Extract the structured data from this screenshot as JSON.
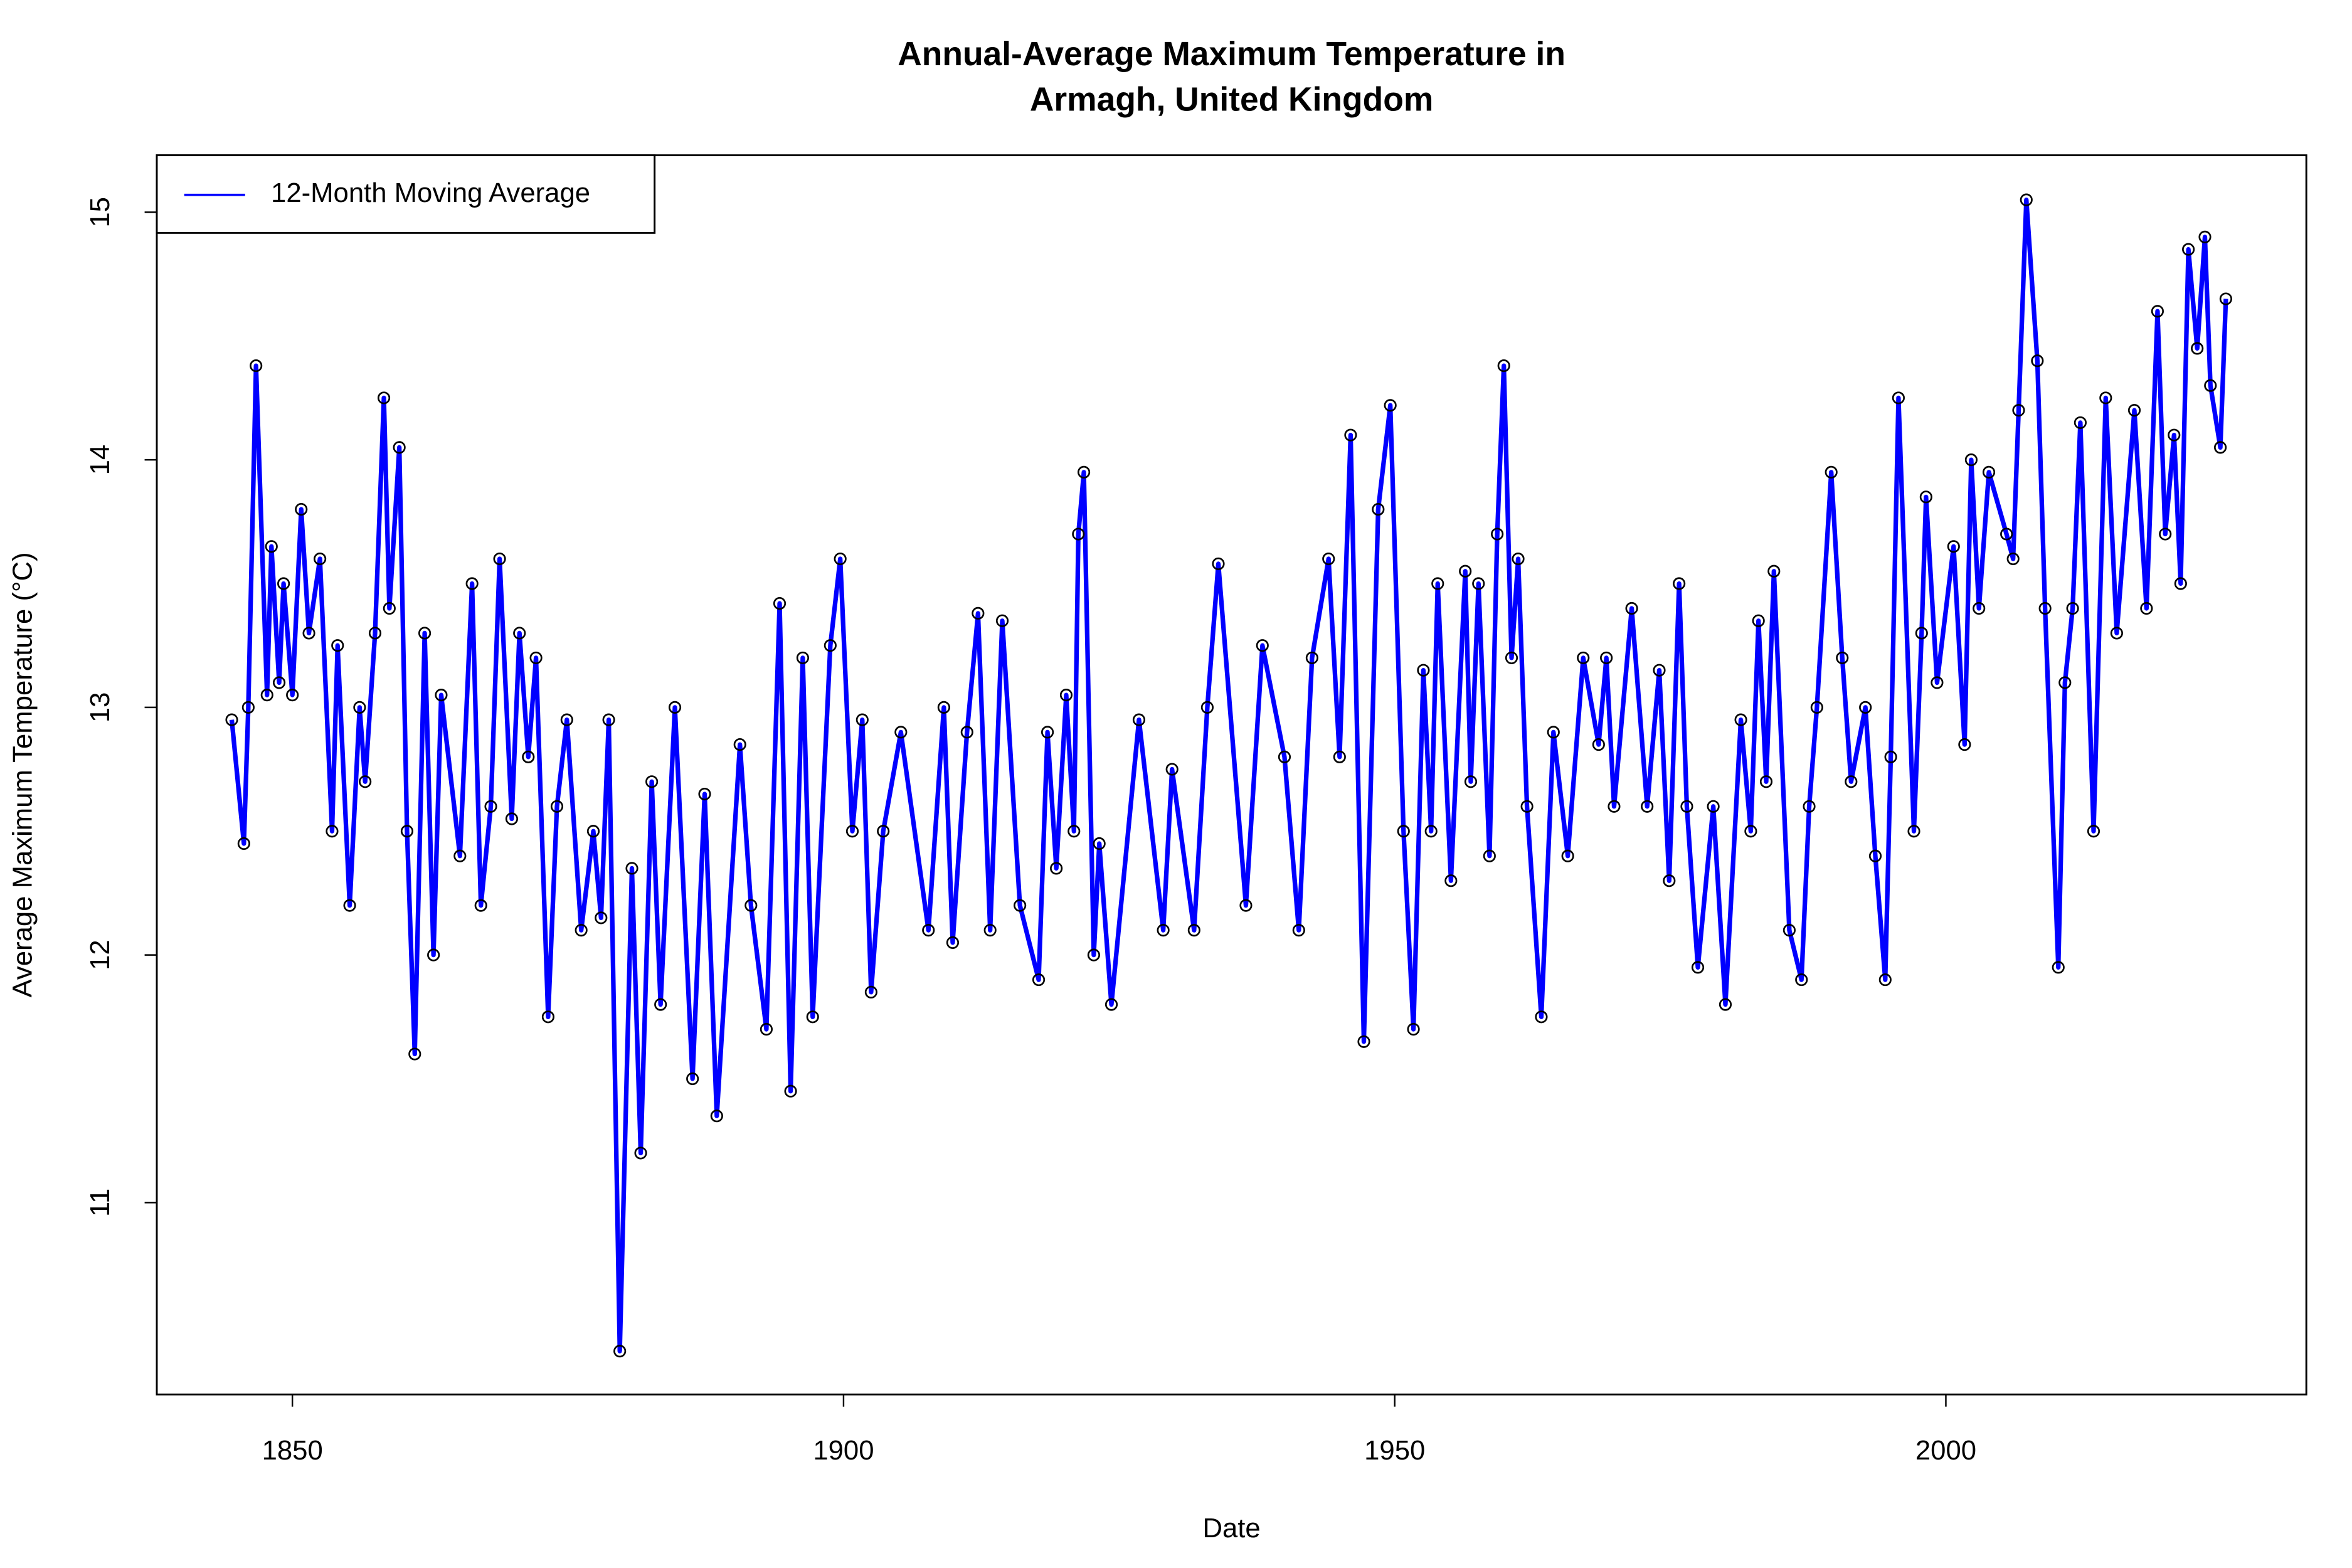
{
  "chart_data": {
    "type": "line",
    "title": [
      "Annual-Average Maximum Temperature in",
      "Armagh, United Kingdom"
    ],
    "x_label": "Date",
    "y_label": "Average Maximum Temperature (°C)",
    "xlim": [
      1837.7,
      2032.7
    ],
    "ylim": [
      10.225,
      15.23
    ],
    "xticks": [
      1850,
      1900,
      1950,
      2000
    ],
    "yticks": [
      11,
      12,
      13,
      14,
      15
    ],
    "grid": false,
    "legend": "top-left",
    "markers": true,
    "series": [
      {
        "name": "12-Month Moving Average",
        "color": "#0000ff",
        "x": [
          1844.5,
          1845.6,
          1846,
          1846.7,
          1847.7,
          1848.1,
          1848.8,
          1849.2,
          1850,
          1850.8,
          1851.5,
          1852.5,
          1853.6,
          1854.1,
          1855.2,
          1856.1,
          1856.6,
          1857.5,
          1858.3,
          1858.8,
          1859.7,
          1860.4,
          1861.1,
          1862,
          1862.8,
          1863.5,
          1865.2,
          1866.3,
          1867.1,
          1868,
          1868.8,
          1869.9,
          1870.6,
          1871.4,
          1872.1,
          1873.2,
          1874,
          1874.9,
          1876.2,
          1877.3,
          1878,
          1878.7,
          1879.7,
          1880.8,
          1881.6,
          1882.6,
          1883.4,
          1884.7,
          1886.3,
          1887.4,
          1888.5,
          1890.6,
          1891.6,
          1893,
          1894.2,
          1895.2,
          1896.3,
          1897.2,
          1898.8,
          1899.7,
          1900.8,
          1901.7,
          1902.5,
          1903.6,
          1905.2,
          1907.7,
          1909.1,
          1909.9,
          1911.2,
          1912.2,
          1913.3,
          1914.4,
          1916,
          1917.7,
          1918.5,
          1919.3,
          1920.2,
          1920.9,
          1921.3,
          1921.8,
          1922.7,
          1923.2,
          1924.3,
          1926.8,
          1929,
          1929.8,
          1931.8,
          1933,
          1934,
          1936.5,
          1938,
          1940,
          1941.3,
          1942.5,
          1944,
          1945,
          1946,
          1947.2,
          1948.5,
          1949.6,
          1950.8,
          1951.7,
          1952.6,
          1953.3,
          1953.9,
          1955.1,
          1956.4,
          1956.9,
          1957.6,
          1958.6,
          1959.3,
          1959.9,
          1960.6,
          1961.2,
          1962,
          1963.3,
          1964.4,
          1965.7,
          1967.1,
          1968.5,
          1969.2,
          1969.9,
          1971.5,
          1972.9,
          1974,
          1974.9,
          1975.8,
          1976.5,
          1977.5,
          1978.9,
          1980,
          1981.4,
          1982.3,
          1983,
          1983.7,
          1984.4,
          1985.8,
          1986.9,
          1987.6,
          1988.3,
          1989.6,
          1990.6,
          1991.4,
          1992.7,
          1993.6,
          1994.5,
          1995,
          1995.7,
          1997.1,
          1997.8,
          1998.2,
          1999.2,
          2000.7,
          2001.7,
          2002.3,
          2003,
          2003.9,
          2005.5,
          2006.1,
          2006.6,
          2007.3,
          2008.3,
          2009,
          2010.2,
          2010.8,
          2011.5,
          2012.2,
          2013.4,
          2014.5,
          2015.5,
          2017.1,
          2018.2,
          2019.2,
          2019.9,
          2020.7,
          2021.3,
          2022,
          2022.8,
          2023.5,
          2024,
          2024.9,
          2025.4
        ],
        "values": [
          12.95,
          12.45,
          13.0,
          14.38,
          13.05,
          13.65,
          13.1,
          13.5,
          13.05,
          13.8,
          13.3,
          13.6,
          12.5,
          13.25,
          12.2,
          13.0,
          12.7,
          13.3,
          14.25,
          13.4,
          14.05,
          12.5,
          11.6,
          13.3,
          12.0,
          13.05,
          12.4,
          13.5,
          12.2,
          12.6,
          13.6,
          12.55,
          13.3,
          12.8,
          13.2,
          11.75,
          12.6,
          12.95,
          12.1,
          12.5,
          12.15,
          12.95,
          10.4,
          12.35,
          11.2,
          12.7,
          11.8,
          13.0,
          11.5,
          12.65,
          11.35,
          12.85,
          12.2,
          11.7,
          13.42,
          11.45,
          13.2,
          11.75,
          13.25,
          13.6,
          12.5,
          12.95,
          11.85,
          12.5,
          12.9,
          12.1,
          13.0,
          12.05,
          12.9,
          13.38,
          12.1,
          13.35,
          12.2,
          11.9,
          12.9,
          12.35,
          13.05,
          12.5,
          13.7,
          13.95,
          12.0,
          12.45,
          11.8,
          12.95,
          12.1,
          12.75,
          12.1,
          13.0,
          13.58,
          12.2,
          13.25,
          12.8,
          12.1,
          13.2,
          13.6,
          12.8,
          14.1,
          11.65,
          13.8,
          14.22,
          12.5,
          11.7,
          13.15,
          12.5,
          13.5,
          12.3,
          13.55,
          12.7,
          13.5,
          12.4,
          13.7,
          14.38,
          13.2,
          13.6,
          12.6,
          11.75,
          12.9,
          12.4,
          13.2,
          12.85,
          13.2,
          12.6,
          13.4,
          12.6,
          13.15,
          12.3,
          13.5,
          12.6,
          11.95,
          12.6,
          11.8,
          12.95,
          12.5,
          13.35,
          12.7,
          13.55,
          12.1,
          11.9,
          12.6,
          13.0,
          13.95,
          13.2,
          12.7,
          13.0,
          12.4,
          11.9,
          12.8,
          14.25,
          12.5,
          13.3,
          13.85,
          13.1,
          13.65,
          12.85,
          14.0,
          13.4,
          13.95,
          13.7,
          13.6,
          14.2,
          15.05,
          14.4,
          13.4,
          11.95,
          13.1,
          13.4,
          14.15,
          12.5,
          14.25,
          13.3,
          14.2,
          13.4,
          14.6,
          13.7,
          14.1,
          13.5,
          14.85,
          14.45,
          14.9,
          14.3,
          14.05,
          14.65
        ]
      }
    ]
  }
}
